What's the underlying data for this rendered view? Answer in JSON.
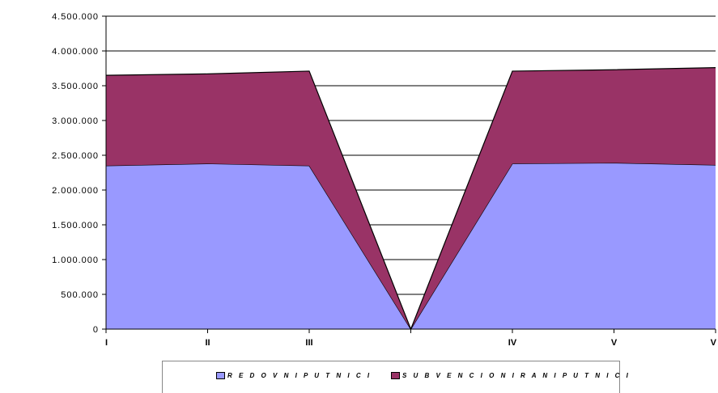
{
  "chart_data": {
    "type": "area",
    "stacked": true,
    "categories": [
      "I",
      "II",
      "III",
      "",
      "IV",
      "V",
      "V"
    ],
    "series": [
      {
        "name": "R E D O V N I P U T N I C I",
        "values": [
          2350000,
          2380000,
          2350000,
          0,
          2380000,
          2390000,
          2360000
        ],
        "color": "#9999ff"
      },
      {
        "name": "S U B V E N C I O N I R A N I P U T N I C I",
        "values": [
          1300000,
          1290000,
          1360000,
          0,
          1330000,
          1340000,
          1400000
        ],
        "color": "#993366"
      }
    ],
    "ylim": [
      0,
      4500000
    ],
    "yticks": [
      0,
      500000,
      1000000,
      1500000,
      2000000,
      2500000,
      3000000,
      3500000,
      4000000,
      4500000
    ],
    "ytick_labels": [
      "0",
      "500.000",
      "1.000.000",
      "1.500.000",
      "2.000.000",
      "2.500.000",
      "3.000.000",
      "3.500.000",
      "4.000.000",
      "4.500.000"
    ],
    "grid": true,
    "legend_position": "bottom"
  }
}
